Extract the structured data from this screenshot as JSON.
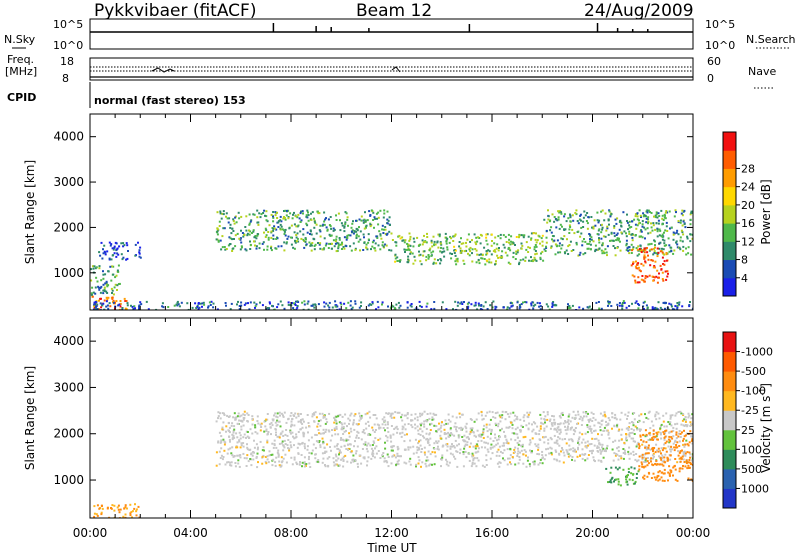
{
  "header": {
    "radar": "Pykkvibaer (fitACF)",
    "beam": "Beam 12",
    "date": "24/Aug/2009"
  },
  "top_strip": {
    "nsky_label": "N.Sky",
    "nsky_ticks": [
      "10^5",
      "10^0"
    ],
    "nsearch_label": "N.Search",
    "nsearch_ticks": [
      "10^5",
      "10^0"
    ],
    "freq_label_1": "Freq.",
    "freq_label_2": "[MHz]",
    "freq_ticks": [
      "18",
      "8"
    ],
    "nave_label": "Nave",
    "nave_ticks": [
      "60",
      "0"
    ],
    "cpid_label": "CPID",
    "cpid_text": "normal (fast stereo) 153"
  },
  "axes": {
    "ylabel": "Slant Range [km]",
    "yticks": [
      "1000",
      "2000",
      "3000",
      "4000"
    ],
    "xlabel": "Time UT",
    "xticks": [
      "00:00",
      "04:00",
      "08:00",
      "12:00",
      "16:00",
      "20:00",
      "00:00"
    ]
  },
  "power_colorbar": {
    "label": "Power [dB]",
    "ticks": [
      "4",
      "8",
      "12",
      "16",
      "20",
      "24",
      "28"
    ],
    "colors": [
      "#1a20e8",
      "#1a4bb4",
      "#2f8a6a",
      "#4fb84a",
      "#b6d21e",
      "#ffd800",
      "#ff9c00",
      "#ff5c00",
      "#f21010"
    ]
  },
  "velocity_colorbar": {
    "label": "Velocity [m s",
    "label_sup": "-1",
    "label_end": "]",
    "ticks": [
      "1000",
      "500",
      "100",
      "25",
      "-25",
      "-100",
      "-500",
      "-1000"
    ],
    "colors": [
      "#2236c8",
      "#2a62b0",
      "#2e8c5a",
      "#62c23c",
      "#c8c8c8",
      "#ffb820",
      "#ff8c10",
      "#ff5a00",
      "#e81212"
    ]
  },
  "chart_data": [
    {
      "type": "heatmap",
      "title": "Power [dB]",
      "xlabel": "Time UT",
      "ylabel": "Slant Range [km]",
      "xlim": [
        "00:00",
        "24:00"
      ],
      "ylim": [
        180,
        4500
      ],
      "zlim": [
        0,
        30
      ],
      "regions": [
        {
          "t": [
            0.0,
            1.5
          ],
          "range": [
            200,
            500
          ],
          "power": 24
        },
        {
          "t": [
            0.0,
            1.2
          ],
          "range": [
            500,
            1200
          ],
          "power": 10
        },
        {
          "t": [
            0.3,
            2.0
          ],
          "range": [
            1300,
            1700
          ],
          "power": 4
        },
        {
          "t": [
            5.0,
            12.0
          ],
          "range": [
            1500,
            2400
          ],
          "power": 10
        },
        {
          "t": [
            12.0,
            18.0
          ],
          "range": [
            1200,
            1900
          ],
          "power": 12
        },
        {
          "t": [
            18.0,
            24.0
          ],
          "range": [
            1400,
            2400
          ],
          "power": 10
        },
        {
          "t": [
            21.5,
            23.0
          ],
          "range": [
            800,
            1600
          ],
          "power": 26
        },
        {
          "t": [
            0.0,
            24.0
          ],
          "range": [
            200,
            400
          ],
          "power": 6
        }
      ]
    },
    {
      "type": "heatmap",
      "title": "Velocity [m s-1]",
      "xlabel": "Time UT",
      "ylabel": "Slant Range [km]",
      "xlim": [
        "00:00",
        "24:00"
      ],
      "ylim": [
        180,
        4500
      ],
      "zlim": [
        -1000,
        1000
      ],
      "regions": [
        {
          "t": [
            0.0,
            2.0
          ],
          "range": [
            200,
            500
          ],
          "velocity": -100
        },
        {
          "t": [
            5.0,
            18.0
          ],
          "range": [
            1300,
            2500
          ],
          "velocity": 0
        },
        {
          "t": [
            18.0,
            24.0
          ],
          "range": [
            1400,
            2500
          ],
          "velocity": 0
        },
        {
          "t": [
            20.5,
            21.8
          ],
          "range": [
            900,
            1300
          ],
          "velocity": 100
        },
        {
          "t": [
            21.8,
            24.0
          ],
          "range": [
            1000,
            2100
          ],
          "velocity": -250
        }
      ]
    }
  ]
}
